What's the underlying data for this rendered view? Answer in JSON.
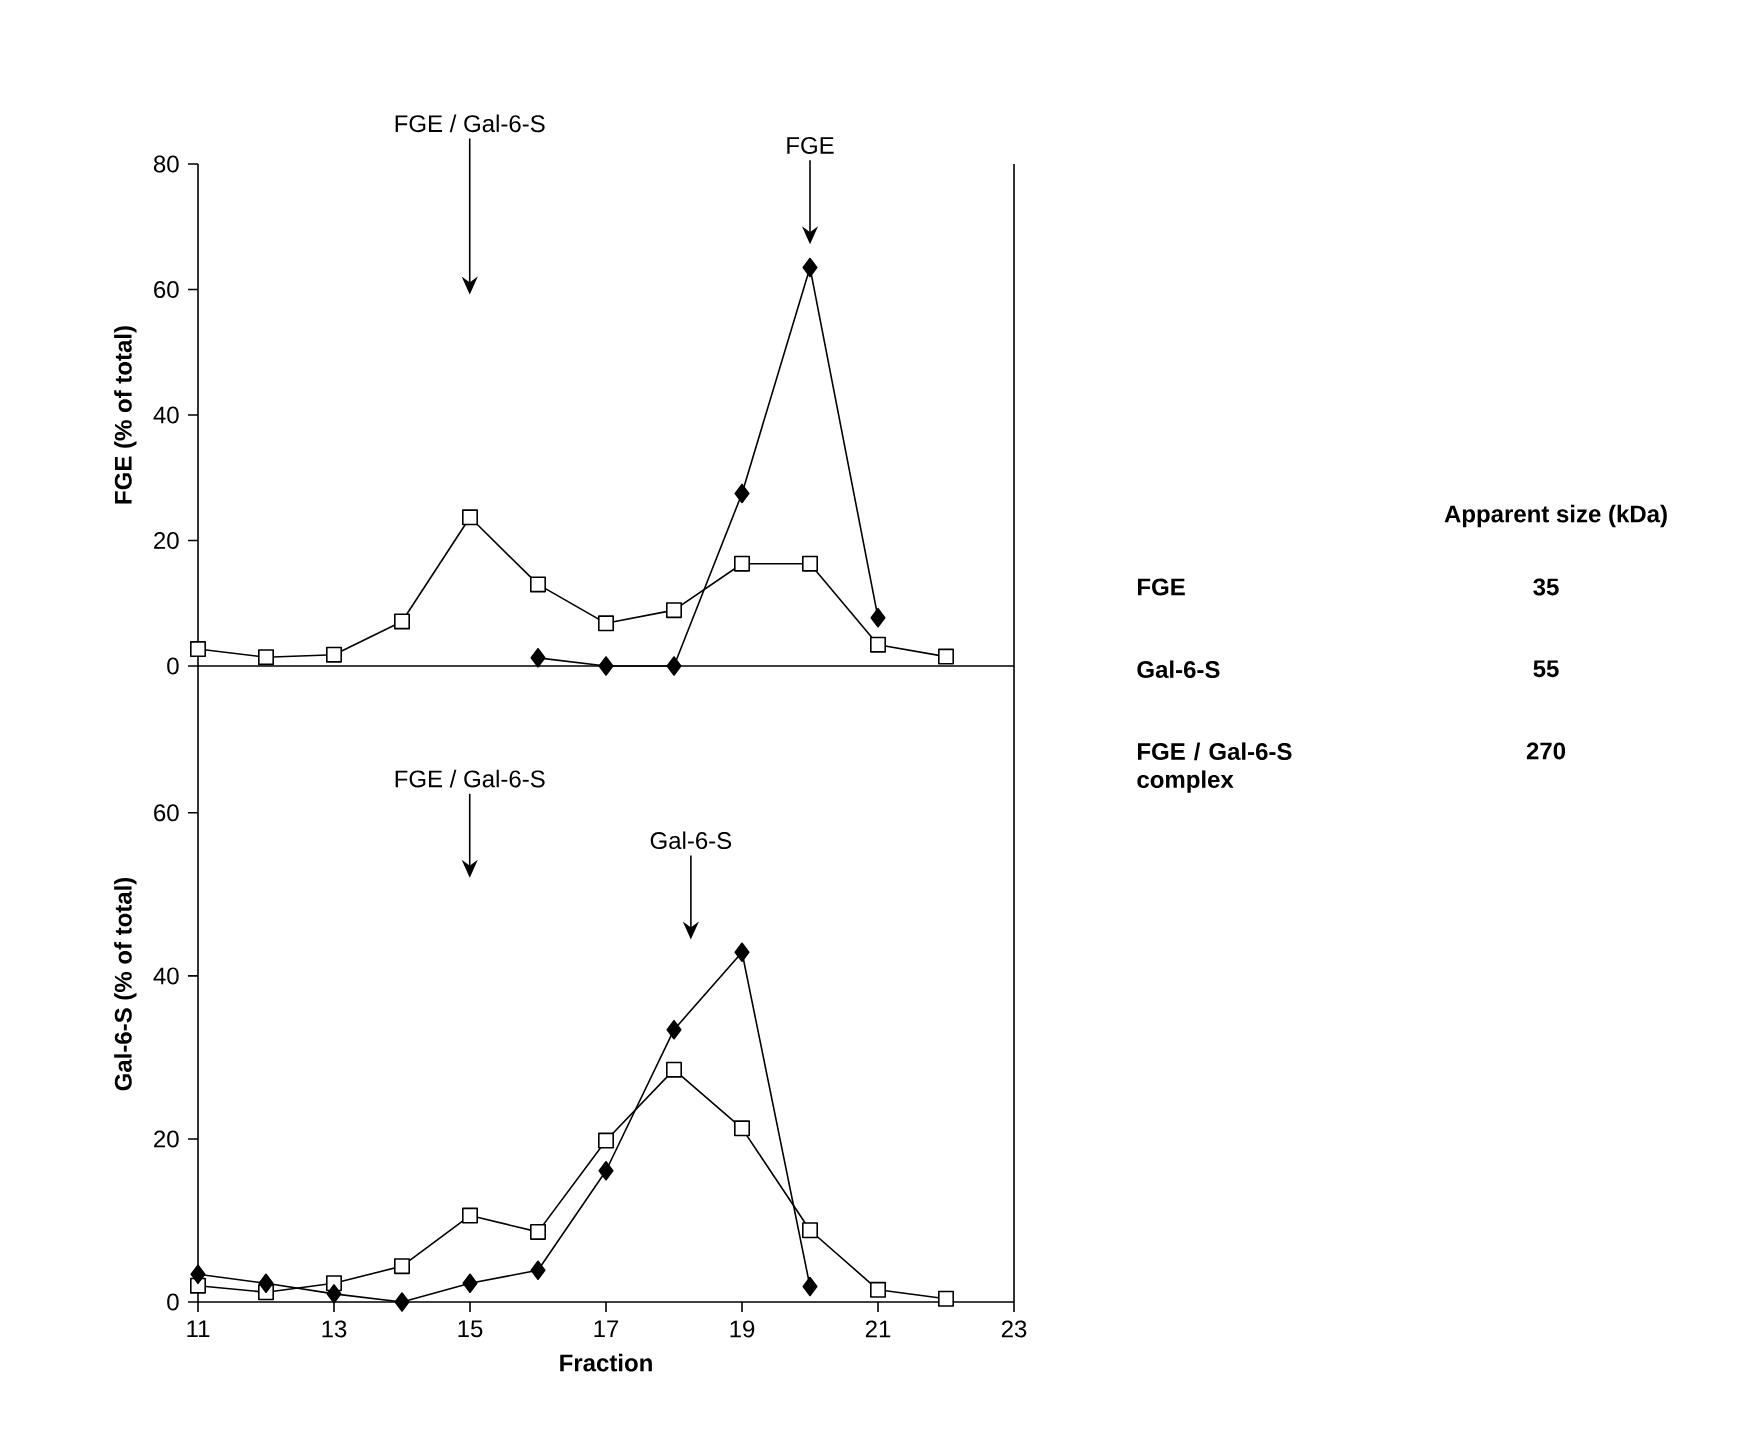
{
  "chart_data": [
    {
      "type": "line",
      "ylabel": "FGE (% of total)",
      "xlim": [
        11,
        23
      ],
      "ylim": [
        0,
        80
      ],
      "yticks": [
        0,
        20,
        40,
        60,
        80
      ],
      "tick_labels": "y",
      "series": [
        {
          "color": "#000000",
          "marker": "square",
          "x": [
            11,
            12,
            13,
            14,
            15,
            16,
            17,
            18,
            19,
            20,
            21,
            22
          ],
          "values": [
            2.7,
            1.4,
            1.8,
            7.1,
            23.7,
            13,
            6.8,
            8.9,
            16.3,
            16.3,
            3.4,
            1.5
          ]
        },
        {
          "color": "#000000",
          "marker": "diamond",
          "x": [
            16,
            17,
            18,
            19,
            20,
            21
          ],
          "values": [
            1.3,
            0,
            0,
            27.5,
            63.5,
            7.7
          ]
        }
      ],
      "annotations": [
        "FGE / Gal-6-S",
        "FGE"
      ]
    },
    {
      "type": "line",
      "xlabel": "Fraction",
      "ylabel": "Gal-6-S (% of total)",
      "xlim": [
        11,
        23
      ],
      "xticks": [
        11,
        13,
        15,
        17,
        19,
        21,
        23
      ],
      "ylim": [
        0,
        78
      ],
      "yticks": [
        0,
        20,
        40,
        60
      ],
      "series": [
        {
          "color": "#000000",
          "marker": "square",
          "x": [
            11,
            12,
            13,
            14,
            15,
            16,
            17,
            18,
            19,
            20,
            21,
            22
          ],
          "values": [
            2,
            1.2,
            2.3,
            4.4,
            10.6,
            8.6,
            19.8,
            28.5,
            21.3,
            8.8,
            1.5,
            0.4
          ]
        },
        {
          "color": "#000000",
          "marker": "diamond",
          "x": [
            11,
            12,
            13,
            14,
            15,
            16,
            17,
            18,
            19,
            20
          ],
          "values": [
            3.4,
            2.3,
            1,
            0,
            2.3,
            3.9,
            16.1,
            33.4,
            42.9,
            1.9
          ]
        }
      ],
      "annotations": [
        "FGE / Gal-6-S",
        "Gal-6-S"
      ]
    },
    {
      "type": "other",
      "title": "Apparent size (kDa)",
      "annotations": [
        "FGE",
        "35",
        "Gal-6-S",
        "55",
        "FGE / Gal-6-S complex",
        "270"
      ]
    }
  ]
}
